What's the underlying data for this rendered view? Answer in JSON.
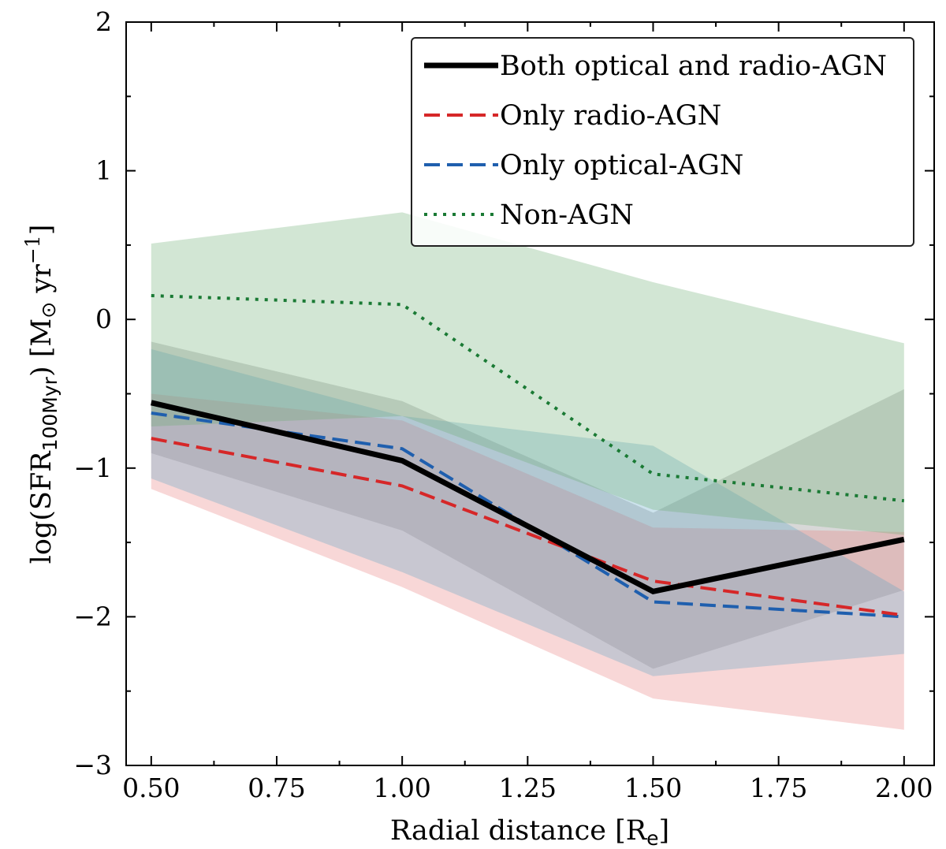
{
  "chart_data": {
    "type": "line",
    "title": "",
    "xlabel": "Radial distance [R",
    "xlabel_sub": "e",
    "xlabel_tail": "]",
    "ylabel": {
      "pre": "log(SFR",
      "sub": "100Myr",
      "mid": ") [M",
      "sun": "⊙",
      "unit": " yr",
      "sup": "−1",
      "tail": "]"
    },
    "xlim": [
      0.45,
      2.06
    ],
    "ylim": [
      -3,
      2
    ],
    "xticks": [
      0.5,
      0.75,
      1.0,
      1.25,
      1.5,
      1.75,
      2.0
    ],
    "xtick_labels": [
      "0.50",
      "0.75",
      "1.00",
      "1.25",
      "1.50",
      "1.75",
      "2.00"
    ],
    "yticks": [
      -3,
      -2,
      -1,
      0,
      1,
      2
    ],
    "ytick_labels": [
      "−3",
      "−2",
      "−1",
      "0",
      "1",
      "2"
    ],
    "x": [
      0.5,
      1.0,
      1.5,
      2.0
    ],
    "legend_position": "top-right",
    "series": [
      {
        "name": "Both optical and radio-AGN",
        "color": "#000000",
        "linestyle": "solid",
        "values": [
          -0.56,
          -0.95,
          -1.83,
          -1.48
        ],
        "band": {
          "upper": [
            -0.15,
            -0.55,
            -1.3,
            -0.47
          ],
          "lower": [
            -0.9,
            -1.42,
            -2.35,
            -1.82
          ],
          "color": "#7f7f7f",
          "opacity": 0.3
        }
      },
      {
        "name": "Only radio-AGN",
        "color": "#d62728",
        "linestyle": "dashed",
        "values": [
          -0.8,
          -1.12,
          -1.76,
          -1.99
        ],
        "band": {
          "upper": [
            -0.5,
            -0.68,
            -1.4,
            -1.43
          ],
          "lower": [
            -1.14,
            -1.8,
            -2.55,
            -2.76
          ],
          "color": "#e8797a",
          "opacity": 0.3
        }
      },
      {
        "name": "Only optical-AGN",
        "color": "#1f5fae",
        "linestyle": "dashed",
        "values": [
          -0.63,
          -0.87,
          -1.9,
          -2.0
        ],
        "band": {
          "upper": [
            -0.2,
            -0.65,
            -0.85,
            -1.83
          ],
          "lower": [
            -1.07,
            -1.7,
            -2.4,
            -2.25
          ],
          "color": "#5ba3c4",
          "opacity": 0.3
        }
      },
      {
        "name": "Non-AGN",
        "color": "#1a7a34",
        "linestyle": "dotted",
        "values": [
          0.16,
          0.1,
          -1.04,
          -1.22
        ],
        "band": {
          "upper": [
            0.51,
            0.72,
            0.25,
            -0.16
          ],
          "lower": [
            -0.72,
            -0.65,
            -1.28,
            -1.45
          ],
          "color": "#6aab72",
          "opacity": 0.3
        }
      }
    ]
  }
}
